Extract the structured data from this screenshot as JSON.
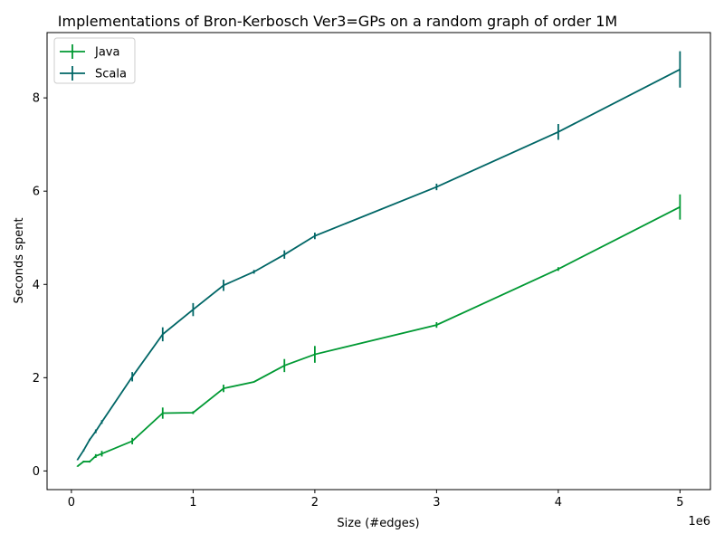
{
  "chart_data": {
    "type": "line",
    "title": "Implementations of Bron-Kerbosch Ver3=GPs on a random graph of order 1M",
    "xlabel": "Size (#edges)",
    "ylabel": "Seconds spent",
    "x_offset_label": "1e6",
    "xlim": [
      -200000,
      5250000
    ],
    "ylim": [
      -0.4,
      9.4
    ],
    "x_ticks": [
      0,
      1000000,
      2000000,
      3000000,
      4000000,
      5000000
    ],
    "x_tick_labels": [
      "0",
      "1",
      "2",
      "3",
      "4",
      "5"
    ],
    "y_ticks": [
      0,
      2,
      4,
      6,
      8
    ],
    "y_tick_labels": [
      "0",
      "2",
      "4",
      "6",
      "8"
    ],
    "legend_position": "top-left",
    "x": [
      50000,
      100000,
      150000,
      200000,
      250000,
      500000,
      750000,
      1000000,
      1250000,
      1500000,
      1750000,
      2000000,
      3000000,
      4000000,
      5000000
    ],
    "series": [
      {
        "name": "Java",
        "color": "#009933",
        "values": [
          0.1,
          0.2,
          0.2,
          0.32,
          0.37,
          0.64,
          1.24,
          1.25,
          1.77,
          1.91,
          2.26,
          2.5,
          3.13,
          4.33,
          5.66
        ],
        "errors": [
          0.01,
          0.02,
          0.02,
          0.04,
          0.06,
          0.07,
          0.12,
          0.03,
          0.08,
          0.01,
          0.14,
          0.18,
          0.06,
          0.04,
          0.27
        ]
      },
      {
        "name": "Scala",
        "color": "#006666",
        "values": [
          0.24,
          0.44,
          0.67,
          0.85,
          1.05,
          2.02,
          2.93,
          3.46,
          3.98,
          4.27,
          4.64,
          5.04,
          6.09,
          7.27,
          8.61
        ],
        "errors": [
          0.01,
          0.02,
          0.02,
          0.04,
          0.04,
          0.1,
          0.15,
          0.14,
          0.12,
          0.04,
          0.09,
          0.07,
          0.07,
          0.17,
          0.39
        ]
      }
    ]
  }
}
